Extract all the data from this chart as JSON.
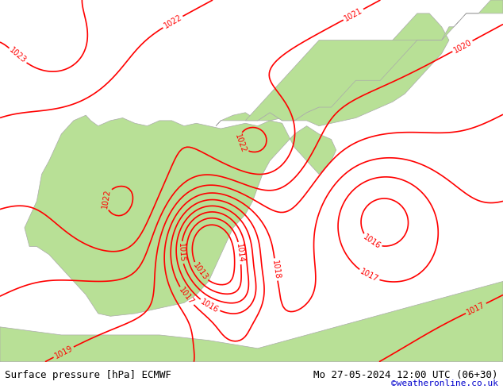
{
  "title_left": "Surface pressure [hPa] ECMWF",
  "title_right": "Mo 27-05-2024 12:00 UTC (06+30)",
  "copyright": "©weatheronline.co.uk",
  "bg_color": "#d3d3d3",
  "land_color": "#b8e096",
  "sea_color": "#d3d3d3",
  "contour_color": "#ff0000",
  "contour_linewidth": 1.2,
  "label_fontsize": 7,
  "bottom_bar_color": "#f0f0f0",
  "bottom_text_color": "#000000",
  "copyright_color": "#0000cc",
  "pressure_min": 1014,
  "pressure_max": 1025,
  "pressure_step": 1,
  "lon_min": -10.5,
  "lon_max": 10.0,
  "lat_min": 34.5,
  "lat_max": 48.0
}
